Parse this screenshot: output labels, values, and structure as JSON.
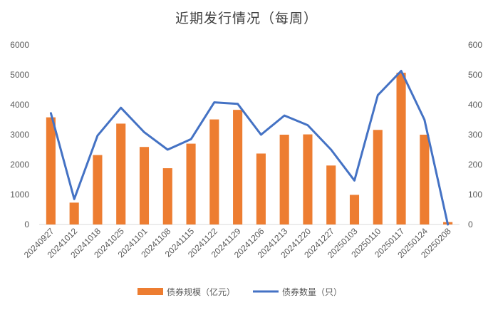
{
  "chart_data": {
    "type": "bar",
    "title": "近期发行情况（每周）",
    "categories": [
      "20240927",
      "20241012",
      "20241018",
      "20241025",
      "20241101",
      "20241108",
      "20241115",
      "20241122",
      "20241129",
      "20241206",
      "20241213",
      "20241220",
      "20241227",
      "20250103",
      "20250110",
      "20250117",
      "20250124",
      "20250208"
    ],
    "series": [
      {
        "name": "债券规模（亿元）",
        "type": "bar",
        "axis": "left",
        "color": "#ED7D31",
        "values": [
          3580,
          730,
          2320,
          3370,
          2590,
          1880,
          2700,
          3510,
          3830,
          2370,
          3000,
          3010,
          1970,
          990,
          3160,
          5070,
          3000,
          80
        ]
      },
      {
        "name": "债券数量（只）",
        "type": "line",
        "axis": "right",
        "color": "#4472C4",
        "values": [
          372,
          85,
          297,
          390,
          308,
          250,
          285,
          408,
          403,
          300,
          364,
          332,
          250,
          147,
          432,
          513,
          350,
          0
        ]
      }
    ],
    "ylim": [
      0,
      6000
    ],
    "y2lim": [
      0,
      600
    ],
    "yticks": [
      "0",
      "1000",
      "2000",
      "3000",
      "4000",
      "5000",
      "6000"
    ],
    "y2ticks": [
      "0",
      "100",
      "200",
      "300",
      "400",
      "500",
      "600"
    ],
    "grid": false,
    "legend_position": "bottom"
  }
}
